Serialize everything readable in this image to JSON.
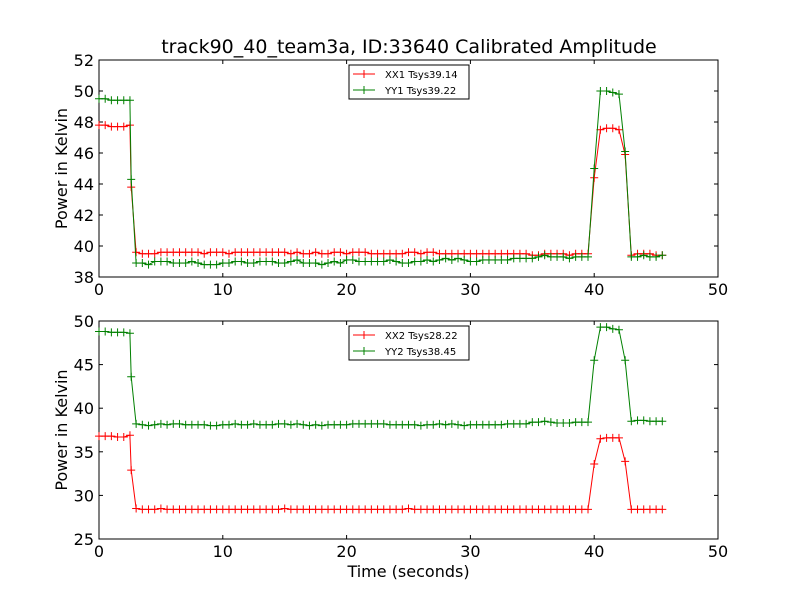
{
  "chart_data": [
    {
      "type": "line",
      "title": "track90_40_team3a, ID:33640 Calibrated Amplitude",
      "xlabel": "",
      "ylabel": "Power in Kelvin",
      "xlim": [
        0,
        50
      ],
      "ylim": [
        38,
        52
      ],
      "xticks": [
        0,
        10,
        20,
        30,
        40,
        50
      ],
      "yticks": [
        38,
        40,
        42,
        44,
        46,
        48,
        50,
        52
      ],
      "xtick_labels": [
        "0",
        "10",
        "20",
        "30",
        "40",
        "50"
      ],
      "ytick_labels": [
        "38",
        "40",
        "42",
        "44",
        "46",
        "48",
        "50",
        "52"
      ],
      "grid": false,
      "legend_position": "top-center",
      "series": [
        {
          "name": "XX1 Tsys39.14",
          "color": "#ff0000",
          "x": [
            0,
            0.5,
            1.0,
            1.5,
            2.0,
            2.5,
            2.6,
            3.0,
            3.5,
            4.0,
            4.5,
            5.0,
            5.5,
            6.0,
            6.5,
            7.0,
            7.5,
            8.0,
            8.5,
            9.0,
            9.5,
            10.0,
            10.5,
            11.0,
            11.5,
            12.0,
            12.5,
            13.0,
            13.5,
            14.0,
            14.5,
            15.0,
            15.5,
            16.0,
            16.5,
            17.0,
            17.5,
            18.0,
            18.5,
            19.0,
            19.5,
            20.0,
            20.5,
            21.0,
            21.5,
            22.0,
            22.5,
            23.0,
            23.5,
            24.0,
            24.5,
            25.0,
            25.5,
            26.0,
            26.5,
            27.0,
            27.5,
            28.0,
            28.5,
            29.0,
            29.5,
            30.0,
            30.5,
            31.0,
            31.5,
            32.0,
            32.5,
            33.0,
            33.5,
            34.0,
            34.5,
            35.0,
            35.5,
            36.0,
            36.5,
            37.0,
            37.5,
            38.0,
            38.5,
            39.0,
            39.5,
            40.0,
            40.5,
            41.0,
            41.5,
            42.0,
            42.5,
            43.0,
            43.5,
            44.0,
            44.5,
            45.0,
            45.5
          ],
          "y": [
            47.8,
            47.8,
            47.7,
            47.7,
            47.7,
            47.8,
            43.8,
            39.6,
            39.5,
            39.5,
            39.5,
            39.6,
            39.6,
            39.6,
            39.6,
            39.6,
            39.6,
            39.6,
            39.5,
            39.6,
            39.6,
            39.6,
            39.5,
            39.6,
            39.6,
            39.6,
            39.6,
            39.6,
            39.6,
            39.6,
            39.6,
            39.6,
            39.5,
            39.6,
            39.5,
            39.5,
            39.6,
            39.5,
            39.5,
            39.6,
            39.6,
            39.5,
            39.6,
            39.6,
            39.6,
            39.5,
            39.5,
            39.5,
            39.5,
            39.5,
            39.5,
            39.6,
            39.6,
            39.5,
            39.6,
            39.6,
            39.5,
            39.5,
            39.5,
            39.5,
            39.5,
            39.5,
            39.5,
            39.5,
            39.5,
            39.5,
            39.5,
            39.5,
            39.5,
            39.5,
            39.5,
            39.4,
            39.4,
            39.5,
            39.5,
            39.5,
            39.5,
            39.4,
            39.5,
            39.5,
            39.5,
            44.4,
            47.5,
            47.6,
            47.6,
            47.5,
            45.9,
            39.4,
            39.5,
            39.5,
            39.5,
            39.4,
            39.4
          ]
        },
        {
          "name": "YY1 Tsys39.22",
          "color": "#008000",
          "x": [
            0,
            0.5,
            1.0,
            1.5,
            2.0,
            2.5,
            2.6,
            3.0,
            3.5,
            4.0,
            4.5,
            5.0,
            5.5,
            6.0,
            6.5,
            7.0,
            7.5,
            8.0,
            8.5,
            9.0,
            9.5,
            10.0,
            10.5,
            11.0,
            11.5,
            12.0,
            12.5,
            13.0,
            13.5,
            14.0,
            14.5,
            15.0,
            15.5,
            16.0,
            16.5,
            17.0,
            17.5,
            18.0,
            18.5,
            19.0,
            19.5,
            20.0,
            20.5,
            21.0,
            21.5,
            22.0,
            22.5,
            23.0,
            23.5,
            24.0,
            24.5,
            25.0,
            25.5,
            26.0,
            26.5,
            27.0,
            27.5,
            28.0,
            28.5,
            29.0,
            29.5,
            30.0,
            30.5,
            31.0,
            31.5,
            32.0,
            32.5,
            33.0,
            33.5,
            34.0,
            34.5,
            35.0,
            35.5,
            36.0,
            36.5,
            37.0,
            37.5,
            38.0,
            38.5,
            39.0,
            39.5,
            40.0,
            40.5,
            41.0,
            41.5,
            42.0,
            42.5,
            43.0,
            43.5,
            44.0,
            44.5,
            45.0,
            45.5
          ],
          "y": [
            49.5,
            49.5,
            49.4,
            49.4,
            49.4,
            49.4,
            44.3,
            38.9,
            38.9,
            38.8,
            39.0,
            39.0,
            39.0,
            38.9,
            38.9,
            38.9,
            39.0,
            38.9,
            38.8,
            38.8,
            38.8,
            38.9,
            38.9,
            39.0,
            39.0,
            38.9,
            38.9,
            39.0,
            39.0,
            39.0,
            38.9,
            38.9,
            39.0,
            39.1,
            38.9,
            38.9,
            38.9,
            38.8,
            38.9,
            39.0,
            38.9,
            39.1,
            39.1,
            39.0,
            39.0,
            39.0,
            39.0,
            39.0,
            39.1,
            39.0,
            38.9,
            38.9,
            39.0,
            39.0,
            39.1,
            39.0,
            39.1,
            39.2,
            39.1,
            39.2,
            39.1,
            39.0,
            39.0,
            39.1,
            39.1,
            39.1,
            39.1,
            39.1,
            39.2,
            39.2,
            39.2,
            39.2,
            39.3,
            39.4,
            39.3,
            39.3,
            39.3,
            39.2,
            39.3,
            39.3,
            39.3,
            45.0,
            50.0,
            50.0,
            49.9,
            49.8,
            46.1,
            39.3,
            39.3,
            39.4,
            39.3,
            39.3,
            39.4
          ]
        }
      ]
    },
    {
      "type": "line",
      "title": "",
      "xlabel": "Time (seconds)",
      "ylabel": "Power in Kelvin",
      "xlim": [
        0,
        50
      ],
      "ylim": [
        25,
        50
      ],
      "xticks": [
        0,
        10,
        20,
        30,
        40,
        50
      ],
      "yticks": [
        25,
        30,
        35,
        40,
        45,
        50
      ],
      "xtick_labels": [
        "0",
        "10",
        "20",
        "30",
        "40",
        "50"
      ],
      "ytick_labels": [
        "25",
        "30",
        "35",
        "40",
        "45",
        "50"
      ],
      "grid": false,
      "legend_position": "top-center",
      "series": [
        {
          "name": "XX2 Tsys28.22",
          "color": "#ff0000",
          "x": [
            0,
            0.5,
            1.0,
            1.5,
            2.0,
            2.5,
            2.6,
            3.0,
            3.5,
            4.0,
            4.5,
            5.0,
            5.5,
            6.0,
            6.5,
            7.0,
            7.5,
            8.0,
            8.5,
            9.0,
            9.5,
            10.0,
            10.5,
            11.0,
            11.5,
            12.0,
            12.5,
            13.0,
            13.5,
            14.0,
            14.5,
            15.0,
            15.5,
            16.0,
            16.5,
            17.0,
            17.5,
            18.0,
            18.5,
            19.0,
            19.5,
            20.0,
            20.5,
            21.0,
            21.5,
            22.0,
            22.5,
            23.0,
            23.5,
            24.0,
            24.5,
            25.0,
            25.5,
            26.0,
            26.5,
            27.0,
            27.5,
            28.0,
            28.5,
            29.0,
            29.5,
            30.0,
            30.5,
            31.0,
            31.5,
            32.0,
            32.5,
            33.0,
            33.5,
            34.0,
            34.5,
            35.0,
            35.5,
            36.0,
            36.5,
            37.0,
            37.5,
            38.0,
            38.5,
            39.0,
            39.5,
            40.0,
            40.5,
            41.0,
            41.5,
            42.0,
            42.5,
            43.0,
            43.5,
            44.0,
            44.5,
            45.0,
            45.5
          ],
          "y": [
            36.8,
            36.8,
            36.8,
            36.7,
            36.7,
            36.9,
            32.9,
            28.5,
            28.4,
            28.4,
            28.4,
            28.5,
            28.4,
            28.4,
            28.4,
            28.4,
            28.4,
            28.4,
            28.4,
            28.4,
            28.4,
            28.4,
            28.4,
            28.4,
            28.4,
            28.4,
            28.4,
            28.4,
            28.4,
            28.4,
            28.4,
            28.5,
            28.4,
            28.4,
            28.4,
            28.4,
            28.4,
            28.4,
            28.4,
            28.4,
            28.4,
            28.4,
            28.4,
            28.4,
            28.4,
            28.4,
            28.4,
            28.4,
            28.4,
            28.4,
            28.4,
            28.5,
            28.4,
            28.4,
            28.4,
            28.4,
            28.4,
            28.4,
            28.4,
            28.4,
            28.4,
            28.4,
            28.4,
            28.4,
            28.4,
            28.4,
            28.4,
            28.4,
            28.4,
            28.4,
            28.4,
            28.4,
            28.4,
            28.4,
            28.4,
            28.4,
            28.4,
            28.4,
            28.4,
            28.4,
            28.4,
            33.6,
            36.5,
            36.6,
            36.6,
            36.6,
            33.9,
            28.4,
            28.4,
            28.4,
            28.4,
            28.4,
            28.4
          ]
        },
        {
          "name": "YY2 Tsys38.45",
          "color": "#008000",
          "x": [
            0,
            0.5,
            1.0,
            1.5,
            2.0,
            2.5,
            2.6,
            3.0,
            3.5,
            4.0,
            4.5,
            5.0,
            5.5,
            6.0,
            6.5,
            7.0,
            7.5,
            8.0,
            8.5,
            9.0,
            9.5,
            10.0,
            10.5,
            11.0,
            11.5,
            12.0,
            12.5,
            13.0,
            13.5,
            14.0,
            14.5,
            15.0,
            15.5,
            16.0,
            16.5,
            17.0,
            17.5,
            18.0,
            18.5,
            19.0,
            19.5,
            20.0,
            20.5,
            21.0,
            21.5,
            22.0,
            22.5,
            23.0,
            23.5,
            24.0,
            24.5,
            25.0,
            25.5,
            26.0,
            26.5,
            27.0,
            27.5,
            28.0,
            28.5,
            29.0,
            29.5,
            30.0,
            30.5,
            31.0,
            31.5,
            32.0,
            32.5,
            33.0,
            33.5,
            34.0,
            34.5,
            35.0,
            35.5,
            36.0,
            36.5,
            37.0,
            37.5,
            38.0,
            38.5,
            39.0,
            39.5,
            40.0,
            40.5,
            41.0,
            41.5,
            42.0,
            42.5,
            43.0,
            43.5,
            44.0,
            44.5,
            45.0,
            45.5
          ],
          "y": [
            48.8,
            48.8,
            48.7,
            48.7,
            48.7,
            48.6,
            43.6,
            38.2,
            38.1,
            38.0,
            38.1,
            38.2,
            38.1,
            38.2,
            38.2,
            38.1,
            38.1,
            38.1,
            38.1,
            38.0,
            38.0,
            38.1,
            38.1,
            38.2,
            38.1,
            38.1,
            38.2,
            38.1,
            38.1,
            38.1,
            38.2,
            38.2,
            38.1,
            38.2,
            38.1,
            38.0,
            38.1,
            38.0,
            38.1,
            38.1,
            38.1,
            38.1,
            38.2,
            38.2,
            38.2,
            38.2,
            38.2,
            38.2,
            38.1,
            38.1,
            38.1,
            38.1,
            38.1,
            38.0,
            38.1,
            38.1,
            38.2,
            38.1,
            38.2,
            38.1,
            38.0,
            38.1,
            38.1,
            38.1,
            38.1,
            38.1,
            38.1,
            38.2,
            38.2,
            38.2,
            38.2,
            38.4,
            38.4,
            38.5,
            38.4,
            38.3,
            38.3,
            38.3,
            38.4,
            38.4,
            38.4,
            45.5,
            49.3,
            49.3,
            49.1,
            49.0,
            45.5,
            38.5,
            38.6,
            38.6,
            38.5,
            38.5,
            38.5
          ]
        }
      ]
    }
  ]
}
